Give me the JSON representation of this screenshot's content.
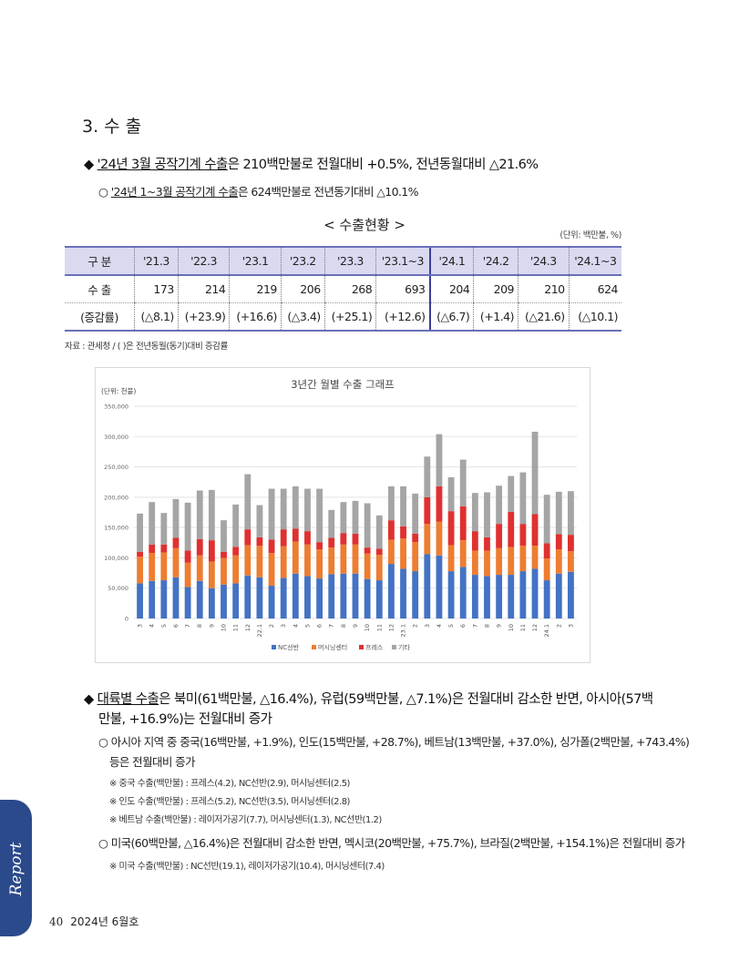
{
  "section_title": "3. 수 출",
  "bullet1": {
    "marker": "◆",
    "underlined": "'24년 3월 공작기계 수출",
    "rest": "은 210백만불로 전월대비 +0.5%, 전년동월대비 △21.6%"
  },
  "sub1": {
    "marker": "○",
    "underlined": "'24년 1~3월 공작기계 수출",
    "rest": "은  624백만불로 전년동기대비 △10.1%"
  },
  "table": {
    "title": "< 수출현황 >",
    "unit": "(단위: 백만불, %)",
    "header_label": "구 분",
    "columns": [
      "'21.3",
      "'22.3",
      "'23.1",
      "'23.2",
      "'23.3",
      "'23.1~3",
      "'24.1",
      "'24.2",
      "'24.3",
      "'24.1~3"
    ],
    "rows": [
      {
        "label": "수 출",
        "values": [
          "173",
          "214",
          "219",
          "206",
          "268",
          "693",
          "204",
          "209",
          "210",
          "624"
        ]
      },
      {
        "label": "(증감률)",
        "values": [
          "(△8.1)",
          "(+23.9)",
          "(+16.6)",
          "(△3.4)",
          "(+25.1)",
          "(+12.6)",
          "(△6.7)",
          "(+1.4)",
          "(△21.6)",
          "(△10.1)"
        ]
      }
    ],
    "source": "자료 : 관세청 / ( )은 전년동월(동기)대비 증감률"
  },
  "chart_data": {
    "type": "bar",
    "stacked": true,
    "title": "3년간 월별 수출 그래프",
    "unit_label": "(단위: 천불)",
    "ylim": [
      0,
      350000
    ],
    "yticks": [
      "0",
      "50,000",
      "100,000",
      "150,000",
      "200,000",
      "250,000",
      "300,000",
      "350,000"
    ],
    "grid": true,
    "legend_position": "bottom",
    "categories": [
      "3",
      "4",
      "5",
      "6",
      "7",
      "8",
      "9",
      "10",
      "11",
      "12",
      "22.1",
      "2",
      "3",
      "4",
      "5",
      "6",
      "7",
      "8",
      "9",
      "10",
      "11",
      "12",
      "23.1",
      "2",
      "3",
      "4",
      "5",
      "6",
      "7",
      "8",
      "9",
      "10",
      "11",
      "12",
      "24.1",
      "2",
      "3"
    ],
    "series": [
      {
        "name": "NC선반",
        "color": "#4472c4",
        "values": [
          58000,
          62000,
          63000,
          68000,
          52000,
          62000,
          50000,
          56000,
          58000,
          71000,
          68000,
          54000,
          67000,
          74000,
          70000,
          66000,
          73000,
          74000,
          74000,
          65000,
          63000,
          90000,
          82000,
          78000,
          106000,
          104000,
          78000,
          85000,
          72000,
          70000,
          72000,
          72000,
          78000,
          82000,
          63000,
          74000,
          77000
        ]
      },
      {
        "name": "머시닝센터",
        "color": "#ed7d31",
        "values": [
          44000,
          46000,
          46000,
          48000,
          40000,
          42000,
          44000,
          44000,
          46000,
          50000,
          52000,
          54000,
          52000,
          53000,
          52000,
          48000,
          44000,
          48000,
          48000,
          42000,
          42000,
          40000,
          50000,
          48000,
          50000,
          56000,
          43000,
          44000,
          40000,
          42000,
          44000,
          46000,
          42000,
          38000,
          36000,
          40000,
          34000
        ]
      },
      {
        "name": "프레스",
        "color": "#e03030",
        "values": [
          8000,
          14000,
          13000,
          17000,
          20000,
          27000,
          35000,
          10000,
          14000,
          26000,
          14000,
          22000,
          28000,
          21000,
          22000,
          12000,
          16000,
          19000,
          18000,
          10000,
          10000,
          32000,
          20000,
          14000,
          44000,
          58000,
          56000,
          56000,
          32000,
          22000,
          40000,
          58000,
          36000,
          52000,
          25000,
          25000,
          27000
        ]
      },
      {
        "name": "기타",
        "color": "#a5a5a5",
        "values": [
          63000,
          70000,
          52000,
          64000,
          79000,
          80000,
          83000,
          52000,
          70000,
          91000,
          53000,
          84000,
          67000,
          70000,
          70000,
          88000,
          46000,
          51000,
          54000,
          73000,
          55000,
          56000,
          66000,
          66000,
          67000,
          86000,
          56000,
          77000,
          63000,
          74000,
          63000,
          59000,
          85000,
          136000,
          80000,
          70000,
          72000
        ]
      }
    ]
  },
  "bullet2": {
    "marker": "◆",
    "underlined": "대륙별 수출",
    "line1_rest": "은 북미(61백만불, △16.4%), 유럽(59백만불, △7.1%)은 전월대비 감소한 반면, 아시아(57백",
    "line2": "만불, +16.9%)는 전월대비 증가"
  },
  "sub2": {
    "marker": "○",
    "line1": "아시아 지역 중 중국(16백만불, +1.9%), 인도(15백만불, +28.7%), 베트남(13백만불, +37.0%), 싱가폴(2백만불, +743.4%)",
    "line2": "등은 전월대비 증가"
  },
  "notes_asia": [
    "※ 중국 수출(백만불) : 프레스(4.2), NC선반(2.9), 머시닝센터(2.5)",
    "※ 인도 수출(백만불) : 프레스(5.2), NC선반(3.5), 머시닝센터(2.8)",
    "※ 베트남 수출(백만불) : 레이저가공기(7.7), 머시닝센터(1.3), NC선반(1.2)"
  ],
  "sub3": {
    "marker": "○",
    "text": "미국(60백만불, △16.4%)은 전월대비 감소한 반면, 멕시코(20백만불, +75.7%), 브라질(2백만불, +154.1%)은 전월대비 증가"
  },
  "note_us": "※ 미국 수출(백만불) : NC선반(19.1), 레이저가공기(10.4), 머시닝센터(7.4)",
  "side_tab_text": "Report",
  "footer": {
    "page_number": "40",
    "issue": "2024년 6월호"
  }
}
